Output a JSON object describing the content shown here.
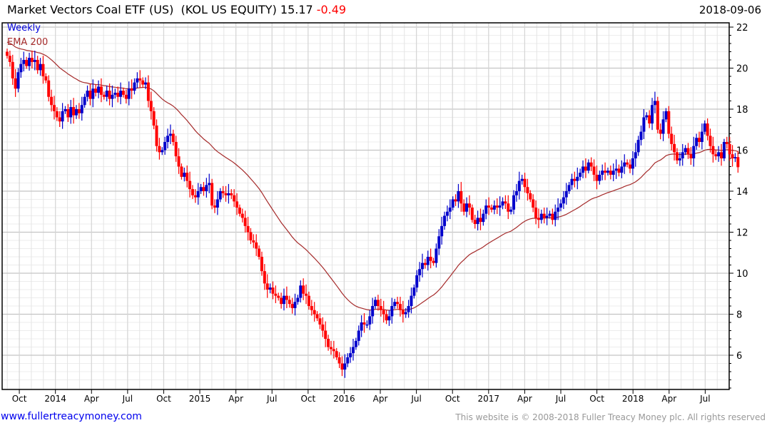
{
  "header": {
    "title": "Market Vectors Coal ETF (US)  (KOL US EQUITY) 15.17",
    "change": "-0.49",
    "date": "2018-09-06",
    "change_color": "#ff0000"
  },
  "legend": {
    "weekly": "Weekly",
    "ema": "EMA 200",
    "weekly_color": "#0000dd",
    "ema_color": "#a52a2a"
  },
  "footer": {
    "link": "www.fullertreacymoney.com",
    "copyright": "This website is © 2008-2018 Fuller Treacy Money plc. All rights reserved"
  },
  "chart_data": {
    "type": "candlestick",
    "title": "Market Vectors Coal ETF (US) (KOL US EQUITY)",
    "frequency": "weekly",
    "up_color": "#0000cc",
    "down_color": "#ff0000",
    "ylim": [
      4.33,
      22.2
    ],
    "y_ticks": [
      6,
      8,
      10,
      12,
      14,
      16,
      18,
      20,
      22
    ],
    "x_tick_labels": [
      "Oct",
      "2014",
      "Apr",
      "Jul",
      "Oct",
      "2015",
      "Apr",
      "Jul",
      "Oct",
      "2016",
      "Apr",
      "Jul",
      "Oct",
      "2017",
      "Apr",
      "Jul",
      "Oct",
      "2018",
      "Apr",
      "Jul"
    ],
    "ema": {
      "label": "EMA 200",
      "period_weeks": 40,
      "seed": 21.3
    },
    "closes": [
      20.6,
      20.3,
      19.5,
      19.0,
      19.8,
      20.2,
      20.4,
      20.1,
      20.5,
      20.3,
      20.4,
      19.9,
      20.2,
      19.6,
      19.4,
      18.6,
      18.2,
      17.9,
      17.6,
      17.4,
      17.9,
      18.0,
      17.6,
      18.1,
      17.7,
      18.0,
      17.8,
      18.2,
      18.6,
      18.9,
      18.5,
      19.0,
      18.8,
      19.1,
      18.7,
      18.6,
      18.9,
      18.5,
      18.7,
      18.8,
      18.6,
      18.9,
      18.7,
      18.5,
      19.0,
      18.9,
      19.3,
      19.5,
      19.4,
      19.2,
      19.3,
      18.4,
      17.9,
      17.2,
      16.2,
      15.9,
      16.0,
      16.4,
      16.7,
      16.8,
      16.4,
      15.7,
      15.2,
      14.7,
      14.9,
      14.5,
      14.1,
      13.8,
      13.7,
      14.0,
      14.2,
      14.0,
      14.3,
      14.4,
      13.3,
      13.2,
      13.6,
      14.0,
      13.9,
      13.8,
      13.9,
      13.8,
      13.5,
      13.2,
      12.9,
      12.7,
      12.3,
      12.0,
      11.6,
      11.5,
      11.2,
      10.8,
      10.1,
      9.5,
      9.2,
      9.3,
      9.0,
      8.9,
      8.8,
      8.5,
      8.9,
      8.7,
      8.5,
      8.3,
      8.6,
      8.8,
      9.4,
      9.0,
      8.9,
      8.4,
      8.2,
      8.0,
      7.8,
      7.5,
      7.2,
      6.8,
      6.4,
      6.3,
      6.2,
      5.9,
      5.6,
      5.3,
      5.6,
      5.9,
      6.1,
      6.4,
      6.7,
      7.2,
      7.6,
      7.5,
      7.5,
      7.9,
      8.4,
      8.7,
      8.4,
      8.2,
      8.0,
      7.7,
      7.9,
      8.4,
      8.6,
      8.5,
      8.2,
      8.0,
      8.1,
      8.4,
      8.9,
      9.3,
      9.9,
      10.2,
      10.5,
      10.4,
      10.8,
      10.6,
      10.5,
      11.2,
      11.8,
      12.3,
      12.8,
      13.0,
      13.2,
      13.6,
      13.5,
      14.0,
      13.4,
      13.0,
      13.4,
      13.2,
      12.6,
      12.4,
      12.7,
      12.5,
      12.9,
      13.3,
      13.2,
      13.1,
      13.3,
      13.2,
      13.3,
      13.5,
      13.4,
      13.0,
      13.1,
      13.8,
      14.0,
      14.5,
      14.6,
      14.2,
      13.9,
      13.6,
      13.2,
      12.7,
      12.6,
      12.9,
      12.7,
      12.8,
      12.9,
      12.6,
      13.0,
      13.2,
      13.4,
      13.7,
      14.0,
      14.3,
      14.6,
      14.5,
      14.7,
      14.9,
      15.2,
      15.0,
      15.4,
      15.2,
      14.8,
      14.5,
      14.8,
      15.0,
      14.9,
      15.0,
      14.8,
      15.0,
      15.1,
      14.9,
      15.2,
      15.4,
      15.3,
      15.1,
      15.6,
      15.9,
      16.5,
      16.9,
      17.6,
      17.7,
      17.3,
      18.2,
      18.4,
      17.0,
      16.8,
      17.5,
      17.9,
      16.8,
      16.3,
      15.9,
      15.5,
      15.6,
      15.9,
      16.1,
      15.8,
      15.6,
      16.2,
      16.6,
      16.4,
      16.9,
      17.3,
      16.7,
      16.2,
      15.8,
      15.7,
      15.9,
      15.6,
      16.4,
      16.3,
      15.8,
      15.6,
      15.66,
      15.17
    ]
  }
}
